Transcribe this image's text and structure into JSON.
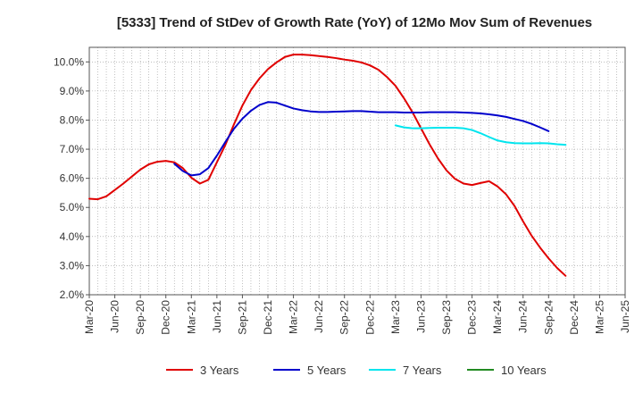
{
  "chart_data": {
    "type": "line",
    "title": "[5333]  Trend of StDev of Growth Rate (YoY) of 12Mo Mov Sum of Revenues",
    "xlabel": "",
    "ylabel": "",
    "ylim": [
      2.0,
      10.5
    ],
    "y_ticks": [
      2.0,
      3.0,
      4.0,
      5.0,
      6.0,
      7.0,
      8.0,
      9.0,
      10.0
    ],
    "y_tick_labels": [
      "2.0%",
      "3.0%",
      "4.0%",
      "5.0%",
      "6.0%",
      "7.0%",
      "8.0%",
      "9.0%",
      "10.0%"
    ],
    "x_range": [
      0,
      63
    ],
    "x_ticks": [
      0,
      3,
      6,
      9,
      12,
      15,
      18,
      21,
      24,
      27,
      30,
      33,
      36,
      39,
      42,
      45,
      48,
      51,
      54,
      57,
      60,
      63
    ],
    "x_tick_labels": [
      "Mar-20",
      "Jun-20",
      "Sep-20",
      "Dec-20",
      "Mar-21",
      "Jun-21",
      "Sep-21",
      "Dec-21",
      "Mar-22",
      "Jun-22",
      "Sep-22",
      "Dec-22",
      "Mar-23",
      "Jun-23",
      "Sep-23",
      "Dec-23",
      "Mar-24",
      "Jun-24",
      "Sep-24",
      "Dec-24",
      "Mar-25",
      "Jun-25"
    ],
    "grid": true,
    "legend_position": "bottom",
    "series": [
      {
        "name": "3 Years",
        "color": "#e00000",
        "points": [
          [
            0,
            5.3
          ],
          [
            1,
            5.28
          ],
          [
            2,
            5.38
          ],
          [
            3,
            5.6
          ],
          [
            4,
            5.82
          ],
          [
            5,
            6.06
          ],
          [
            6,
            6.3
          ],
          [
            7,
            6.48
          ],
          [
            8,
            6.57
          ],
          [
            9,
            6.6
          ],
          [
            10,
            6.55
          ],
          [
            11,
            6.35
          ],
          [
            12,
            6.02
          ],
          [
            13,
            5.82
          ],
          [
            14,
            5.95
          ],
          [
            15,
            6.55
          ],
          [
            16,
            7.15
          ],
          [
            17,
            7.85
          ],
          [
            18,
            8.5
          ],
          [
            19,
            9.03
          ],
          [
            20,
            9.43
          ],
          [
            21,
            9.75
          ],
          [
            22,
            9.98
          ],
          [
            23,
            10.17
          ],
          [
            24,
            10.25
          ],
          [
            25,
            10.25
          ],
          [
            26,
            10.23
          ],
          [
            27,
            10.2
          ],
          [
            28,
            10.17
          ],
          [
            29,
            10.13
          ],
          [
            30,
            10.08
          ],
          [
            31,
            10.04
          ],
          [
            32,
            9.98
          ],
          [
            33,
            9.88
          ],
          [
            34,
            9.73
          ],
          [
            35,
            9.48
          ],
          [
            36,
            9.18
          ],
          [
            37,
            8.75
          ],
          [
            38,
            8.27
          ],
          [
            39,
            7.72
          ],
          [
            40,
            7.17
          ],
          [
            41,
            6.68
          ],
          [
            42,
            6.27
          ],
          [
            43,
            5.98
          ],
          [
            44,
            5.82
          ],
          [
            45,
            5.77
          ],
          [
            46,
            5.84
          ],
          [
            47,
            5.9
          ],
          [
            48,
            5.72
          ],
          [
            49,
            5.45
          ],
          [
            50,
            5.05
          ],
          [
            51,
            4.52
          ],
          [
            52,
            4.03
          ],
          [
            53,
            3.62
          ],
          [
            54,
            3.25
          ],
          [
            55,
            2.92
          ],
          [
            56,
            2.65
          ]
        ]
      },
      {
        "name": "5 Years",
        "color": "#0000cc",
        "points": [
          [
            10,
            6.5
          ],
          [
            11,
            6.25
          ],
          [
            12,
            6.1
          ],
          [
            13,
            6.14
          ],
          [
            14,
            6.35
          ],
          [
            15,
            6.78
          ],
          [
            16,
            7.25
          ],
          [
            17,
            7.7
          ],
          [
            18,
            8.05
          ],
          [
            19,
            8.32
          ],
          [
            20,
            8.52
          ],
          [
            21,
            8.62
          ],
          [
            22,
            8.6
          ],
          [
            23,
            8.5
          ],
          [
            24,
            8.4
          ],
          [
            25,
            8.34
          ],
          [
            26,
            8.3
          ],
          [
            27,
            8.28
          ],
          [
            28,
            8.28
          ],
          [
            29,
            8.29
          ],
          [
            30,
            8.3
          ],
          [
            31,
            8.31
          ],
          [
            32,
            8.31
          ],
          [
            33,
            8.29
          ],
          [
            34,
            8.27
          ],
          [
            35,
            8.27
          ],
          [
            36,
            8.27
          ],
          [
            37,
            8.26
          ],
          [
            38,
            8.26
          ],
          [
            39,
            8.26
          ],
          [
            40,
            8.27
          ],
          [
            41,
            8.27
          ],
          [
            42,
            8.27
          ],
          [
            43,
            8.27
          ],
          [
            44,
            8.26
          ],
          [
            45,
            8.25
          ],
          [
            46,
            8.23
          ],
          [
            47,
            8.2
          ],
          [
            48,
            8.16
          ],
          [
            49,
            8.11
          ],
          [
            50,
            8.04
          ],
          [
            51,
            7.97
          ],
          [
            52,
            7.87
          ],
          [
            53,
            7.75
          ],
          [
            54,
            7.62
          ]
        ]
      },
      {
        "name": "7 Years",
        "color": "#00e5ee",
        "points": [
          [
            36,
            7.82
          ],
          [
            37,
            7.75
          ],
          [
            38,
            7.72
          ],
          [
            39,
            7.72
          ],
          [
            40,
            7.73
          ],
          [
            41,
            7.74
          ],
          [
            42,
            7.74
          ],
          [
            43,
            7.74
          ],
          [
            44,
            7.72
          ],
          [
            45,
            7.66
          ],
          [
            46,
            7.55
          ],
          [
            47,
            7.42
          ],
          [
            48,
            7.3
          ],
          [
            49,
            7.24
          ],
          [
            50,
            7.21
          ],
          [
            51,
            7.2
          ],
          [
            52,
            7.2
          ],
          [
            53,
            7.21
          ],
          [
            54,
            7.2
          ],
          [
            55,
            7.17
          ],
          [
            56,
            7.15
          ]
        ]
      },
      {
        "name": "10 Years",
        "color": "#228b22",
        "points": []
      }
    ]
  }
}
